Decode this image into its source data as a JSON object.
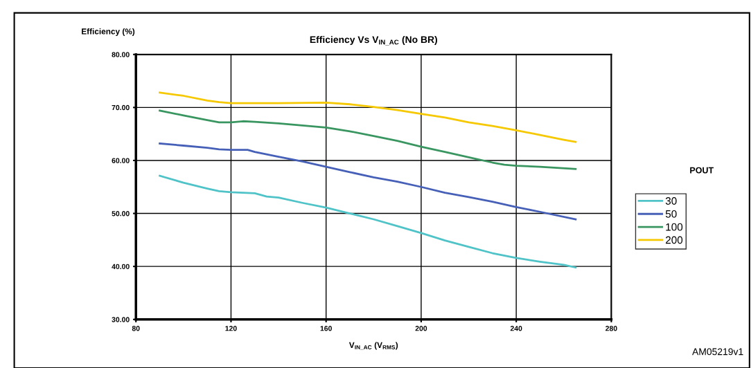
{
  "chart_data": {
    "type": "line",
    "title": "Efficiency Vs V$_{IN_AC}$ (No BR)",
    "xlabel": "V$_{IN_AC}$ (V$_{RMS}$)",
    "ylabel": "Efficiency (%)",
    "legend_title": "POUT",
    "annotations": [
      "AM05219v1"
    ],
    "xlim": [
      80,
      280
    ],
    "xticks": [
      80,
      120,
      160,
      200,
      240,
      280
    ],
    "ylim": [
      30,
      80
    ],
    "yticks": [
      {
        "value": 30,
        "label": "30.00"
      },
      {
        "value": 40,
        "label": "40.00"
      },
      {
        "value": 50,
        "label": "50.00"
      },
      {
        "value": 60,
        "label": "60.00"
      },
      {
        "value": 70,
        "label": "70.00"
      },
      {
        "value": 80,
        "label": "80.00"
      }
    ],
    "grid": true,
    "legend": "right",
    "marker": "none",
    "line_style": "solid",
    "series": [
      {
        "name": "30",
        "color": "#4fc3c8",
        "x": [
          90,
          100,
          110,
          115,
          120,
          125,
          130,
          135,
          140,
          150,
          160,
          170,
          180,
          190,
          200,
          210,
          220,
          230,
          240,
          250,
          260,
          265
        ],
        "values": [
          57.1,
          55.8,
          54.7,
          54.2,
          54.0,
          53.9,
          53.8,
          53.2,
          53.0,
          52.0,
          51.1,
          50.0,
          48.9,
          47.6,
          46.3,
          44.9,
          43.7,
          42.5,
          41.6,
          40.9,
          40.3,
          39.8
        ]
      },
      {
        "name": "50",
        "color": "#4660b8",
        "x": [
          90,
          100,
          110,
          115,
          120,
          127,
          130,
          140,
          150,
          160,
          170,
          180,
          190,
          200,
          210,
          220,
          230,
          240,
          250,
          265
        ],
        "values": [
          63.2,
          62.8,
          62.4,
          62.1,
          62.0,
          62.0,
          61.6,
          60.7,
          59.8,
          58.8,
          57.8,
          56.8,
          56.0,
          55.0,
          53.9,
          53.1,
          52.2,
          51.2,
          50.3,
          48.9
        ]
      },
      {
        "name": "100",
        "color": "#3a9660",
        "x": [
          90,
          100,
          110,
          115,
          120,
          125,
          130,
          140,
          150,
          160,
          170,
          180,
          190,
          200,
          210,
          220,
          230,
          235,
          240,
          250,
          265
        ],
        "values": [
          69.4,
          68.5,
          67.6,
          67.2,
          67.2,
          67.4,
          67.3,
          67.0,
          66.6,
          66.2,
          65.5,
          64.6,
          63.7,
          62.6,
          61.6,
          60.6,
          59.6,
          59.2,
          59.0,
          58.8,
          58.4
        ]
      },
      {
        "name": "200",
        "color": "#f5c800",
        "x": [
          90,
          100,
          110,
          115,
          120,
          140,
          160,
          170,
          180,
          190,
          200,
          210,
          220,
          230,
          240,
          250,
          260,
          265
        ],
        "values": [
          72.8,
          72.2,
          71.3,
          71.0,
          70.8,
          70.8,
          70.9,
          70.6,
          70.1,
          69.5,
          68.8,
          68.1,
          67.2,
          66.5,
          65.7,
          64.8,
          63.9,
          63.5
        ]
      }
    ]
  }
}
